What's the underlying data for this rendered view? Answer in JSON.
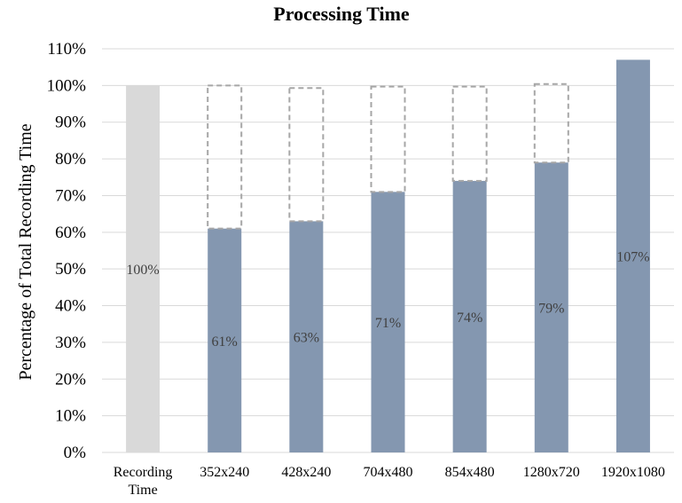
{
  "chart_data": {
    "type": "bar",
    "title": "Processing Time",
    "xlabel": "",
    "ylabel": "Percentage of Total Recording Time",
    "ylim": [
      0,
      110
    ],
    "yticks": [
      "0%",
      "10%",
      "20%",
      "30%",
      "40%",
      "50%",
      "60%",
      "70%",
      "80%",
      "90%",
      "100%",
      "110%"
    ],
    "grid": true,
    "categories": [
      "Recording Time",
      "352x240",
      "428x240",
      "704x480",
      "854x480",
      "1280x720",
      "1920x1080"
    ],
    "category_lines": [
      [
        "Recording",
        "Time"
      ],
      [
        "352x240"
      ],
      [
        "428x240"
      ],
      [
        "704x480"
      ],
      [
        "854x480"
      ],
      [
        "1280x720"
      ],
      [
        "1920x1080"
      ]
    ],
    "values": [
      100,
      61,
      63,
      71,
      74,
      79,
      107
    ],
    "data_labels": [
      "100%",
      "61%",
      "63%",
      "71%",
      "74%",
      "79%",
      "107%"
    ],
    "remainder_outline_top": [
      null,
      100,
      99.3,
      99.7,
      99.7,
      100.4,
      null
    ],
    "colors": {
      "reference_bar": "#d9d9d9",
      "bar": "#8497b0",
      "outline": "#a6a6a6",
      "grid": "#d9d9d9"
    }
  }
}
